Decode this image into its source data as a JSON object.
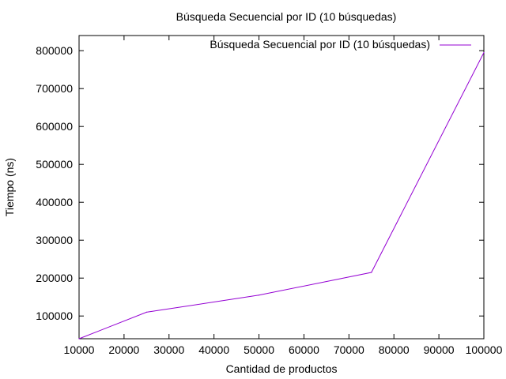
{
  "chart_data": {
    "type": "line",
    "title": "Búsqueda Secuencial por ID (10 búsquedas)",
    "xlabel": "Cantidad de productos",
    "ylabel": "Tiempo (ns)",
    "xlim": [
      10000,
      100000
    ],
    "ylim": [
      40000,
      840000
    ],
    "x_ticks": [
      "10000",
      "20000",
      "30000",
      "40000",
      "50000",
      "60000",
      "70000",
      "80000",
      "90000",
      "100000"
    ],
    "y_ticks": [
      "100000",
      "200000",
      "300000",
      "400000",
      "500000",
      "600000",
      "700000",
      "800000"
    ],
    "grid": false,
    "legend_position": "top-right",
    "series": [
      {
        "name": "Búsqueda Secuencial por ID (10 búsquedas)",
        "color": "#9400d3",
        "x": [
          10000,
          25000,
          50000,
          75000,
          100000
        ],
        "y": [
          40000,
          110000,
          155000,
          215000,
          795000
        ]
      }
    ]
  }
}
